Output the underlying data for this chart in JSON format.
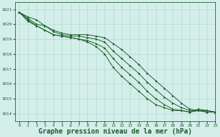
{
  "background_color": "#d4eeea",
  "grid_color": "#b0d8d2",
  "line_color": "#1a5c28",
  "marker_color": "#1a5c28",
  "xlabel": "Graphe pression niveau de la mer (hPa)",
  "xlabel_fontsize": 7,
  "xlim": [
    -0.5,
    23
  ],
  "ylim": [
    1013.5,
    1021.5
  ],
  "yticks": [
    1014,
    1015,
    1016,
    1017,
    1018,
    1019,
    1020,
    1021
  ],
  "xticks": [
    0,
    1,
    2,
    3,
    4,
    5,
    6,
    7,
    8,
    9,
    10,
    11,
    12,
    13,
    14,
    15,
    16,
    17,
    18,
    19,
    20,
    21,
    22,
    23
  ],
  "series": [
    [
      1020.8,
      1020.5,
      1020.3,
      1019.9,
      1019.6,
      1019.4,
      1019.3,
      1019.3,
      1019.3,
      1019.2,
      1019.1,
      1018.7,
      1018.3,
      1017.8,
      1017.3,
      1016.7,
      1016.2,
      1015.7,
      1015.2,
      1014.7,
      1014.3,
      1014.2,
      1014.2,
      1014.1
    ],
    [
      1020.8,
      1020.4,
      1020.0,
      1019.9,
      1019.5,
      1019.3,
      1019.2,
      1019.2,
      1019.1,
      1019.0,
      1018.8,
      1018.2,
      1017.7,
      1017.2,
      1016.7,
      1016.1,
      1015.6,
      1015.1,
      1014.7,
      1014.4,
      1014.2,
      1014.2,
      1014.1,
      1014.1
    ],
    [
      1020.8,
      1020.3,
      1019.9,
      1019.6,
      1019.3,
      1019.2,
      1019.1,
      1019.0,
      1018.9,
      1018.7,
      1018.4,
      1017.7,
      1017.1,
      1016.6,
      1016.1,
      1015.5,
      1015.0,
      1014.6,
      1014.3,
      1014.2,
      1014.1,
      1014.2,
      1014.1,
      1014.1
    ],
    [
      1020.8,
      1020.2,
      1019.9,
      1019.6,
      1019.3,
      1019.2,
      1019.1,
      1019.0,
      1018.8,
      1018.5,
      1018.0,
      1017.1,
      1016.5,
      1016.0,
      1015.5,
      1015.0,
      1014.6,
      1014.4,
      1014.2,
      1014.2,
      1014.1,
      1014.3,
      1014.2,
      1014.1
    ]
  ]
}
